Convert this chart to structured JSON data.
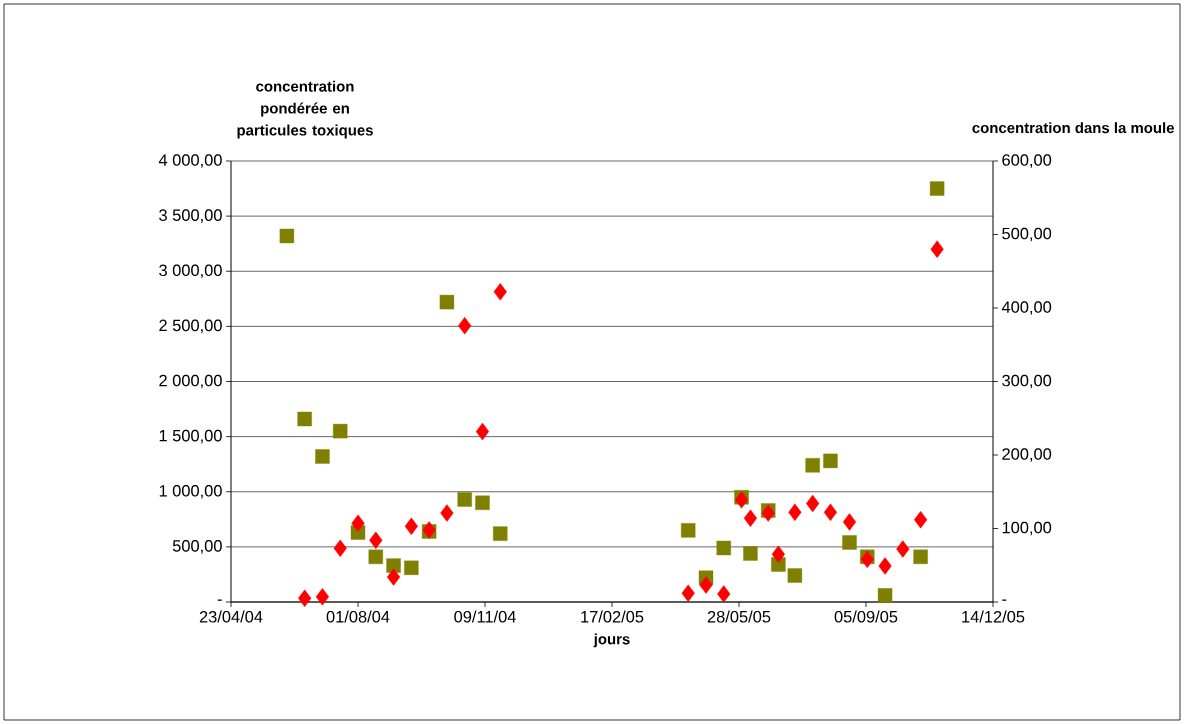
{
  "chart_data": {
    "type": "scatter",
    "xlabel": "jours",
    "ylabel": "concentration pondérée en particules toxiques",
    "y2label": "concentration dans la moule",
    "xlim": [
      "2004-04-23",
      "2005-12-14"
    ],
    "xticks": [
      {
        "value": "2004-04-23",
        "label": "23/04/04"
      },
      {
        "value": "2004-08-01",
        "label": "01/08/04"
      },
      {
        "value": "2004-11-09",
        "label": "09/11/04"
      },
      {
        "value": "2005-02-17",
        "label": "17/02/05"
      },
      {
        "value": "2005-05-28",
        "label": "28/05/05"
      },
      {
        "value": "2005-09-05",
        "label": "05/09/05"
      },
      {
        "value": "2005-12-14",
        "label": "14/12/05"
      }
    ],
    "ylim": [
      0,
      4000
    ],
    "yticks": [
      {
        "value": 0,
        "label": "-"
      },
      {
        "value": 500,
        "label": "500,00"
      },
      {
        "value": 1000,
        "label": "1 000,00"
      },
      {
        "value": 1500,
        "label": "1 500,00"
      },
      {
        "value": 2000,
        "label": "2 000,00"
      },
      {
        "value": 2500,
        "label": "2 500,00"
      },
      {
        "value": 3000,
        "label": "3 000,00"
      },
      {
        "value": 3500,
        "label": "3 500,00"
      },
      {
        "value": 4000,
        "label": "4 000,00"
      }
    ],
    "y2lim": [
      0,
      600
    ],
    "y2ticks": [
      {
        "value": 0,
        "label": "-"
      },
      {
        "value": 100,
        "label": "100,00"
      },
      {
        "value": 200,
        "label": "200,00"
      },
      {
        "value": 300,
        "label": "300,00"
      },
      {
        "value": 400,
        "label": "400,00"
      },
      {
        "value": 500,
        "label": "500,00"
      },
      {
        "value": 600,
        "label": "600,00"
      }
    ],
    "grid": "y",
    "series": [
      {
        "color": "#808000",
        "marker": "square",
        "x": [
          "2004-06-06",
          "2004-06-20",
          "2004-07-04",
          "2004-07-18",
          "2004-08-01",
          "2004-08-15",
          "2004-08-29",
          "2004-09-12",
          "2004-09-26",
          "2004-10-10",
          "2004-10-24",
          "2004-11-07",
          "2004-11-21",
          "2005-04-18",
          "2005-05-02",
          "2005-05-16",
          "2005-05-30",
          "2005-06-06",
          "2005-06-20",
          "2005-06-28",
          "2005-07-11",
          "2005-07-25",
          "2005-08-08",
          "2005-08-23",
          "2005-09-06",
          "2005-09-20",
          "2005-10-18",
          "2005-10-31"
        ],
        "values": [
          3320,
          1660,
          1320,
          1550,
          630,
          410,
          330,
          310,
          640,
          2720,
          930,
          900,
          620,
          650,
          220,
          490,
          950,
          440,
          830,
          340,
          240,
          1240,
          1280,
          540,
          410,
          60,
          410,
          3750
        ]
      },
      {
        "color": "#ff0000",
        "marker": "diamond",
        "axis": "y2",
        "x": [
          "2004-06-20",
          "2004-07-04",
          "2004-07-18",
          "2004-08-01",
          "2004-08-15",
          "2004-08-29",
          "2004-09-12",
          "2004-09-26",
          "2004-10-10",
          "2004-10-24",
          "2004-11-07",
          "2004-11-21",
          "2005-04-18",
          "2005-05-02",
          "2005-05-16",
          "2005-05-30",
          "2005-06-06",
          "2005-06-20",
          "2005-06-28",
          "2005-07-11",
          "2005-07-25",
          "2005-08-08",
          "2005-08-23",
          "2005-09-06",
          "2005-09-20",
          "2005-10-04",
          "2005-10-18",
          "2005-10-31"
        ],
        "values": [
          5,
          7,
          73,
          107,
          84,
          34,
          103,
          98,
          121,
          376,
          232,
          422,
          12,
          23,
          11,
          139,
          114,
          121,
          65,
          122,
          134,
          122,
          109,
          58,
          49,
          72,
          112,
          480
        ]
      }
    ]
  }
}
